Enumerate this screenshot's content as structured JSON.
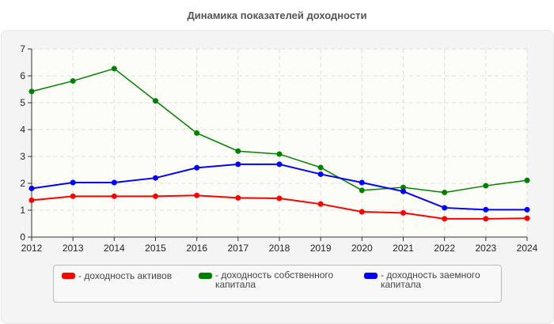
{
  "chart_data": {
    "type": "line",
    "title": "Динамика показателей доходности",
    "xlabel": "",
    "ylabel": "",
    "x": [
      2012,
      2013,
      2014,
      2015,
      2016,
      2017,
      2018,
      2019,
      2020,
      2021,
      2022,
      2023,
      2024
    ],
    "ylim": [
      0,
      7
    ],
    "yticks": [
      0,
      1,
      2,
      3,
      4,
      5,
      6,
      7
    ],
    "grid": true,
    "legend_placement": "bottom",
    "series": [
      {
        "name": "- доходность активов",
        "color": "#ff0000",
        "values": [
          1.37,
          1.52,
          1.52,
          1.52,
          1.55,
          1.46,
          1.44,
          1.23,
          0.94,
          0.9,
          0.68,
          0.68,
          0.7
        ]
      },
      {
        "name": "- доходность собственного капитала",
        "color": "#008000",
        "values": [
          5.42,
          5.81,
          6.27,
          5.07,
          3.87,
          3.2,
          3.09,
          2.59,
          1.74,
          1.85,
          1.66,
          1.91,
          2.11
        ]
      },
      {
        "name": "- доходность заемного капитала",
        "color": "#0000ff",
        "values": [
          1.81,
          2.03,
          2.03,
          2.2,
          2.58,
          2.71,
          2.71,
          2.34,
          2.03,
          1.7,
          1.09,
          1.02,
          1.02
        ]
      }
    ]
  }
}
